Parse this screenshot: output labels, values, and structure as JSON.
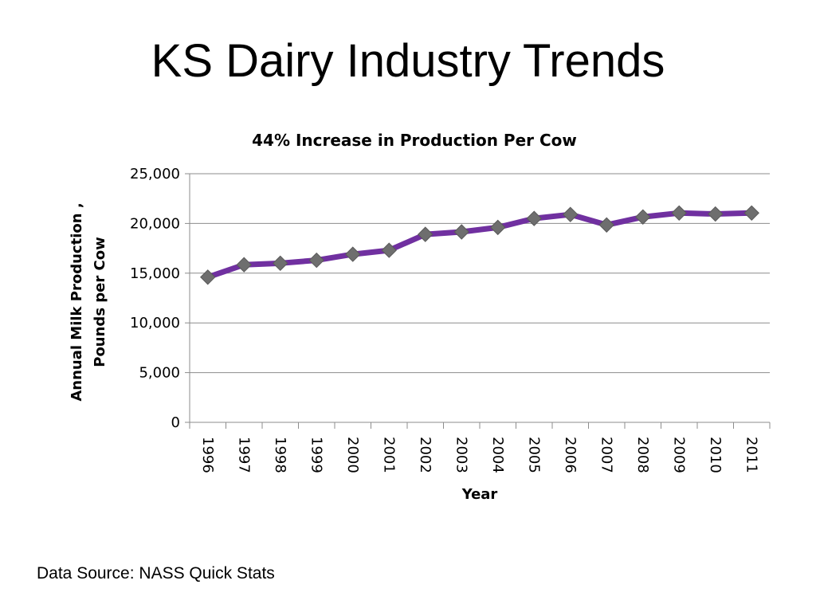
{
  "slide": {
    "title": "KS Dairy Industry Trends",
    "source": "Data Source: NASS Quick Stats"
  },
  "colors": {
    "line": "#7030a0",
    "marker": "#6e6e6e",
    "grid": "#8c8c8c"
  },
  "chart_data": {
    "type": "line",
    "title": "44% Increase in Production Per Cow",
    "xlabel": "Year",
    "ylabel": "Annual Milk Production , Pounds per Cow",
    "ylim": [
      0,
      25000
    ],
    "yticks": [
      "0",
      "5,000",
      "10,000",
      "15,000",
      "20,000",
      "25,000"
    ],
    "grid": true,
    "legend": "none",
    "categories": [
      "1996",
      "1997",
      "1998",
      "1999",
      "2000",
      "2001",
      "2002",
      "2003",
      "2004",
      "2005",
      "2006",
      "2007",
      "2008",
      "2009",
      "2010",
      "2011"
    ],
    "series": [
      {
        "values": [
          14600,
          15850,
          16000,
          16300,
          16900,
          17300,
          18900,
          19150,
          19600,
          20500,
          20900,
          19850,
          20650,
          21050,
          20950,
          21050
        ],
        "marker": "diamond"
      }
    ]
  }
}
